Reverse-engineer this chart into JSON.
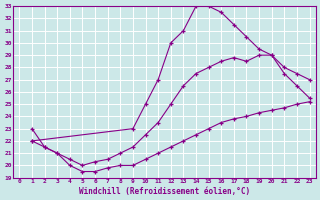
{
  "xlabel": "Windchill (Refroidissement éolien,°C)",
  "bg_color": "#cce8e8",
  "grid_color": "#ffffff",
  "line_color": "#880088",
  "xlim": [
    -0.5,
    23.5
  ],
  "ylim": [
    19,
    33
  ],
  "xticks": [
    0,
    1,
    2,
    3,
    4,
    5,
    6,
    7,
    8,
    9,
    10,
    11,
    12,
    13,
    14,
    15,
    16,
    17,
    18,
    19,
    20,
    21,
    22,
    23
  ],
  "yticks": [
    19,
    20,
    21,
    22,
    23,
    24,
    25,
    26,
    27,
    28,
    29,
    30,
    31,
    32,
    33
  ],
  "line1_x": [
    1,
    9,
    10,
    11,
    12,
    13,
    14,
    15,
    16,
    17,
    18,
    19,
    20,
    21,
    22,
    23
  ],
  "line1_y": [
    22,
    23,
    25,
    27,
    30,
    31,
    33,
    33,
    32.5,
    31.5,
    30.5,
    29.5,
    29,
    27.5,
    26.5,
    25.5
  ],
  "line2_x": [
    1,
    2,
    3,
    4,
    5,
    6,
    7,
    8,
    9,
    10,
    11,
    12,
    13,
    14,
    15,
    16,
    17,
    18,
    19,
    20,
    21,
    22,
    23
  ],
  "line2_y": [
    22,
    21.5,
    21,
    20.5,
    20,
    20.3,
    20.5,
    21,
    21.5,
    22.5,
    23.5,
    25,
    26.5,
    27.5,
    28,
    28.5,
    28.8,
    28.5,
    29,
    29,
    28,
    27.5,
    27
  ],
  "line3_x": [
    1,
    2,
    3,
    4,
    5,
    6,
    7,
    8,
    9,
    10,
    11,
    12,
    13,
    14,
    15,
    16,
    17,
    18,
    19,
    20,
    21,
    22,
    23
  ],
  "line3_y": [
    23,
    21.5,
    21,
    20,
    19.5,
    19.5,
    19.8,
    20,
    20,
    20.5,
    21,
    21.5,
    22,
    22.5,
    23,
    23.5,
    23.8,
    24,
    24.3,
    24.5,
    24.7,
    25,
    25.2
  ]
}
